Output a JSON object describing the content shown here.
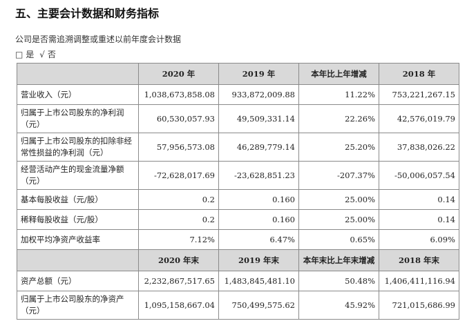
{
  "heading": "五、主要会计数据和财务指标",
  "note": "公司是否需追溯调整或重述以前年度会计数据",
  "choice": {
    "yes_box": "□",
    "yes_label": "是",
    "no_mark": "√",
    "no_label": "否"
  },
  "table1": {
    "headers": [
      "",
      "2020 年",
      "2019 年",
      "本年比上年增减",
      "2018 年"
    ],
    "rows": [
      {
        "label": "营业收入（元）",
        "v2020": "1,038,673,858.08",
        "v2019": "933,872,009.88",
        "change": "11.22%",
        "v2018": "753,221,267.15"
      },
      {
        "label": "归属于上市公司股东的净利润（元）",
        "v2020": "60,530,057.93",
        "v2019": "49,509,331.14",
        "change": "22.26%",
        "v2018": "42,576,019.79"
      },
      {
        "label": "归属于上市公司股东的扣除非经常性损益的净利润（元）",
        "v2020": "57,956,573.08",
        "v2019": "46,289,779.14",
        "change": "25.20%",
        "v2018": "37,838,026.22"
      },
      {
        "label": "经营活动产生的现金流量净额（元）",
        "v2020": "-72,628,017.69",
        "v2019": "-23,628,851.23",
        "change": "-207.37%",
        "v2018": "-50,006,057.54"
      },
      {
        "label": "基本每股收益（元/股）",
        "v2020": "0.2",
        "v2019": "0.160",
        "change": "25.00%",
        "v2018": "0.14"
      },
      {
        "label": "稀释每股收益（元/股）",
        "v2020": "0.2",
        "v2019": "0.160",
        "change": "25.00%",
        "v2018": "0.14"
      },
      {
        "label": "加权平均净资产收益率",
        "v2020": "7.12%",
        "v2019": "6.47%",
        "change": "0.65%",
        "v2018": "6.09%"
      }
    ]
  },
  "table2": {
    "headers": [
      "",
      "2020 年末",
      "2019 年末",
      "本年末比上年末增减",
      "2018 年末"
    ],
    "rows": [
      {
        "label": "资产总额（元）",
        "v2020": "2,232,867,517.65",
        "v2019": "1,483,845,481.10",
        "change": "50.48%",
        "v2018": "1,406,411,116.94"
      },
      {
        "label": "归属于上市公司股东的净资产（元）",
        "v2020": "1,095,158,667.04",
        "v2019": "750,499,575.62",
        "change": "45.92%",
        "v2018": "721,015,686.99"
      }
    ]
  }
}
